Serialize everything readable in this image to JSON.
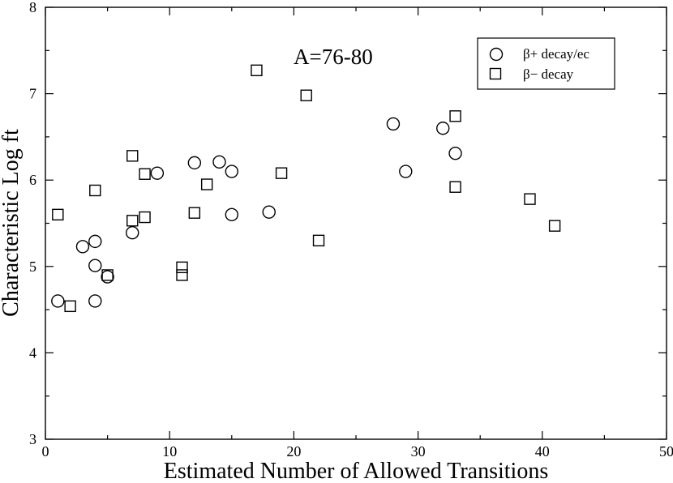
{
  "chart_data": {
    "type": "scatter",
    "xlabel": "Estimated Number of Allowed Transitions",
    "ylabel": "Characteristic Log ft",
    "xlim": [
      0,
      50
    ],
    "ylim": [
      3,
      8
    ],
    "xticks": [
      "0",
      "10",
      "20",
      "30",
      "40",
      "50"
    ],
    "yticks": [
      "3",
      "4",
      "5",
      "6",
      "7",
      "8"
    ],
    "grid": false,
    "legend_position": "top-right",
    "annotation": "A=76-80",
    "series": [
      {
        "name": "β+ decay/ec",
        "marker": "circle",
        "points": [
          {
            "x": 1,
            "y": 4.6
          },
          {
            "x": 3,
            "y": 5.23
          },
          {
            "x": 4,
            "y": 5.29
          },
          {
            "x": 4,
            "y": 5.01
          },
          {
            "x": 4,
            "y": 4.6
          },
          {
            "x": 5,
            "y": 4.88
          },
          {
            "x": 7,
            "y": 5.39
          },
          {
            "x": 9,
            "y": 6.08
          },
          {
            "x": 12,
            "y": 6.2
          },
          {
            "x": 14,
            "y": 6.21
          },
          {
            "x": 15,
            "y": 6.1
          },
          {
            "x": 15,
            "y": 5.6
          },
          {
            "x": 18,
            "y": 5.63
          },
          {
            "x": 28,
            "y": 6.65
          },
          {
            "x": 29,
            "y": 6.1
          },
          {
            "x": 32,
            "y": 6.6
          },
          {
            "x": 33,
            "y": 6.31
          }
        ]
      },
      {
        "name": "β− decay",
        "marker": "square",
        "points": [
          {
            "x": 1,
            "y": 5.6
          },
          {
            "x": 2,
            "y": 4.54
          },
          {
            "x": 4,
            "y": 5.88
          },
          {
            "x": 5,
            "y": 4.9
          },
          {
            "x": 7,
            "y": 6.28
          },
          {
            "x": 7,
            "y": 5.53
          },
          {
            "x": 8,
            "y": 6.07
          },
          {
            "x": 8,
            "y": 5.57
          },
          {
            "x": 11,
            "y": 4.99
          },
          {
            "x": 11,
            "y": 4.9
          },
          {
            "x": 12,
            "y": 5.62
          },
          {
            "x": 13,
            "y": 5.95
          },
          {
            "x": 17,
            "y": 7.27
          },
          {
            "x": 19,
            "y": 6.08
          },
          {
            "x": 21,
            "y": 6.98
          },
          {
            "x": 22,
            "y": 5.3
          },
          {
            "x": 33,
            "y": 6.74
          },
          {
            "x": 33,
            "y": 5.92
          },
          {
            "x": 39,
            "y": 5.78
          },
          {
            "x": 41,
            "y": 5.47
          }
        ]
      }
    ]
  },
  "colors": {
    "background": "#ffffff",
    "foreground": "#000000"
  }
}
